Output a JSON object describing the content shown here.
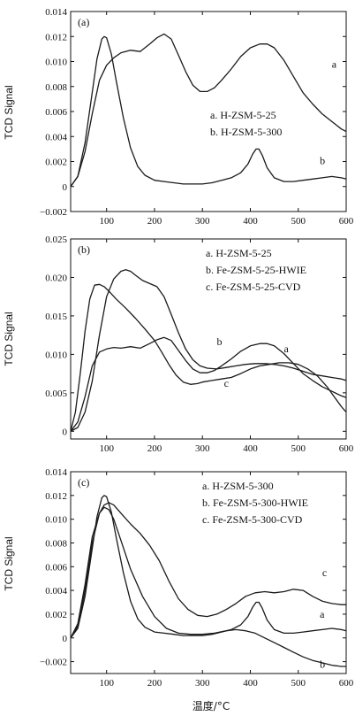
{
  "figure": {
    "xlabel": "温度/°C",
    "ylabel": "TCD Signal"
  },
  "chart_data": [
    {
      "type": "line",
      "panel_label": "(a)",
      "xlim": [
        25,
        600
      ],
      "ylim": [
        -0.002,
        0.014
      ],
      "xticks": [
        "100",
        "200",
        "300",
        "400",
        "500",
        "600"
      ],
      "yticks": [
        "0.014",
        "0.012",
        "0.010",
        "0.008",
        "0.006",
        "0.004",
        "0.002",
        "0",
        "-0.002"
      ],
      "ytick_values": [
        0.014,
        0.012,
        0.01,
        0.008,
        0.006,
        0.004,
        0.002,
        0,
        -0.002
      ],
      "legend": [
        "a. H-ZSM-5-25",
        "b. H-ZSM-5-300"
      ],
      "series": [
        {
          "name": "a",
          "label_pos": [
            570,
            0.0095
          ],
          "x": [
            25,
            40,
            55,
            70,
            85,
            100,
            115,
            130,
            150,
            170,
            190,
            205,
            220,
            235,
            250,
            265,
            280,
            295,
            310,
            325,
            340,
            360,
            380,
            400,
            420,
            435,
            450,
            470,
            490,
            510,
            530,
            550,
            570,
            590,
            600
          ],
          "y": [
            0.0,
            0.0008,
            0.0028,
            0.0058,
            0.0085,
            0.0097,
            0.0103,
            0.0107,
            0.0109,
            0.0108,
            0.0114,
            0.0119,
            0.0122,
            0.0118,
            0.0105,
            0.0092,
            0.0081,
            0.0076,
            0.0076,
            0.0079,
            0.0085,
            0.0094,
            0.0104,
            0.0111,
            0.0114,
            0.0114,
            0.0111,
            0.0101,
            0.0088,
            0.0075,
            0.0066,
            0.0058,
            0.0052,
            0.0046,
            0.0044
          ]
        },
        {
          "name": "b",
          "label_pos": [
            545,
            0.0018
          ],
          "x": [
            25,
            40,
            55,
            70,
            80,
            90,
            95,
            100,
            110,
            120,
            135,
            150,
            165,
            180,
            200,
            220,
            240,
            260,
            280,
            300,
            320,
            340,
            360,
            380,
            395,
            405,
            412,
            418,
            425,
            435,
            450,
            470,
            490,
            510,
            530,
            550,
            570,
            590,
            600
          ],
          "y": [
            0.0,
            0.0008,
            0.0035,
            0.0075,
            0.0102,
            0.0118,
            0.012,
            0.0119,
            0.0106,
            0.0085,
            0.0055,
            0.0031,
            0.0016,
            0.0009,
            0.0005,
            0.0004,
            0.0003,
            0.0002,
            0.0002,
            0.0002,
            0.0003,
            0.0005,
            0.0007,
            0.0011,
            0.0018,
            0.0026,
            0.003,
            0.003,
            0.0025,
            0.0015,
            0.0007,
            0.0004,
            0.0004,
            0.0005,
            0.0006,
            0.0007,
            0.0008,
            0.0007,
            0.0006
          ]
        }
      ]
    },
    {
      "type": "line",
      "panel_label": "(b)",
      "xlim": [
        25,
        600
      ],
      "ylim": [
        -0.001,
        0.025
      ],
      "xticks": [
        "100",
        "200",
        "300",
        "400",
        "500",
        "600"
      ],
      "yticks": [
        "0.025",
        "0.020",
        "0.015",
        "0.010",
        "0.005",
        "0"
      ],
      "ytick_values": [
        0.025,
        0.02,
        0.015,
        0.01,
        0.005,
        0
      ],
      "legend": [
        "a. H-ZSM-5-25",
        "b. Fe-ZSM-5-25-HWIE",
        "c. Fe-ZSM-5-25-CVD"
      ],
      "series": [
        {
          "name": "a",
          "label_pos": [
            470,
            0.0103
          ],
          "x": [
            25,
            40,
            55,
            70,
            85,
            100,
            115,
            130,
            150,
            170,
            190,
            205,
            220,
            235,
            250,
            265,
            280,
            295,
            310,
            325,
            340,
            360,
            380,
            400,
            420,
            435,
            450,
            470,
            490,
            510,
            530,
            550,
            570,
            590,
            600
          ],
          "y": [
            0.0,
            0.0012,
            0.0045,
            0.0085,
            0.0103,
            0.0107,
            0.0109,
            0.0108,
            0.011,
            0.0108,
            0.0114,
            0.0119,
            0.0122,
            0.0118,
            0.0105,
            0.0092,
            0.0081,
            0.0076,
            0.0076,
            0.0079,
            0.0085,
            0.0094,
            0.0104,
            0.0111,
            0.0114,
            0.0114,
            0.0111,
            0.0101,
            0.0088,
            0.0075,
            0.0066,
            0.0058,
            0.0052,
            0.0046,
            0.0044
          ]
        },
        {
          "name": "b",
          "label_pos": [
            330,
            0.0112
          ],
          "x": [
            25,
            40,
            55,
            70,
            85,
            100,
            115,
            130,
            140,
            150,
            160,
            175,
            190,
            205,
            220,
            235,
            250,
            265,
            280,
            295,
            310,
            330,
            350,
            370,
            390,
            410,
            430,
            450,
            470,
            490,
            510,
            530,
            550,
            570,
            590,
            600
          ],
          "y": [
            0.0,
            0.0005,
            0.0025,
            0.0065,
            0.0125,
            0.0175,
            0.0198,
            0.0208,
            0.021,
            0.0208,
            0.0203,
            0.0196,
            0.0192,
            0.0188,
            0.0175,
            0.0152,
            0.0128,
            0.0107,
            0.0093,
            0.0085,
            0.0082,
            0.0081,
            0.0083,
            0.0085,
            0.0087,
            0.0088,
            0.0088,
            0.0087,
            0.0085,
            0.0082,
            0.0078,
            0.0074,
            0.0072,
            0.007,
            0.0068,
            0.0066
          ]
        },
        {
          "name": "c",
          "label_pos": [
            345,
            0.0058
          ],
          "x": [
            25,
            35,
            45,
            55,
            65,
            75,
            85,
            95,
            105,
            120,
            140,
            160,
            180,
            200,
            215,
            230,
            245,
            260,
            275,
            290,
            300,
            320,
            340,
            360,
            380,
            400,
            420,
            440,
            460,
            480,
            500,
            520,
            540,
            560,
            575,
            590,
            600
          ],
          "y": [
            0.0,
            0.0025,
            0.0075,
            0.013,
            0.0172,
            0.019,
            0.0191,
            0.0188,
            0.0182,
            0.0172,
            0.016,
            0.0147,
            0.0133,
            0.0118,
            0.0103,
            0.0087,
            0.0073,
            0.0064,
            0.0061,
            0.0062,
            0.0064,
            0.0066,
            0.0068,
            0.007,
            0.0075,
            0.0081,
            0.0085,
            0.0087,
            0.0089,
            0.0089,
            0.0087,
            0.0081,
            0.0072,
            0.0058,
            0.0045,
            0.0032,
            0.0025
          ]
        }
      ]
    },
    {
      "type": "line",
      "panel_label": "(c)",
      "xlim": [
        25,
        600
      ],
      "ylim": [
        -0.003,
        0.014
      ],
      "xticks": [
        "100",
        "200",
        "300",
        "400",
        "500",
        "600"
      ],
      "yticks": [
        "0.014",
        "0.012",
        "0.010",
        "0.008",
        "0.006",
        "0.004",
        "0.002",
        "0",
        "-0.002"
      ],
      "ytick_values": [
        0.014,
        0.012,
        0.01,
        0.008,
        0.006,
        0.004,
        0.002,
        0,
        -0.002
      ],
      "legend": [
        "a. H-ZSM-5-300",
        "b. Fe-ZSM-5-300-HWIE",
        "c. Fe-ZSM-5-300-CVD"
      ],
      "series": [
        {
          "name": "a",
          "label_pos": [
            545,
            0.0017
          ],
          "x": [
            25,
            40,
            55,
            70,
            80,
            90,
            95,
            100,
            110,
            120,
            135,
            150,
            165,
            180,
            200,
            220,
            240,
            260,
            280,
            300,
            320,
            340,
            360,
            380,
            395,
            405,
            412,
            418,
            425,
            435,
            450,
            470,
            490,
            510,
            530,
            550,
            570,
            590,
            600
          ],
          "y": [
            0.0,
            0.0008,
            0.0035,
            0.0075,
            0.0102,
            0.0118,
            0.012,
            0.0119,
            0.0106,
            0.0085,
            0.0055,
            0.0031,
            0.0016,
            0.0009,
            0.0005,
            0.0004,
            0.0003,
            0.0002,
            0.0002,
            0.0002,
            0.0003,
            0.0005,
            0.0007,
            0.0011,
            0.0018,
            0.0026,
            0.003,
            0.003,
            0.0025,
            0.0015,
            0.0007,
            0.0004,
            0.0004,
            0.0005,
            0.0006,
            0.0007,
            0.0008,
            0.0007,
            0.0006
          ]
        },
        {
          "name": "b",
          "label_pos": [
            545,
            -0.0025
          ],
          "x": [
            25,
            40,
            55,
            70,
            85,
            95,
            105,
            115,
            130,
            150,
            175,
            200,
            225,
            250,
            275,
            300,
            325,
            350,
            370,
            390,
            410,
            430,
            450,
            470,
            490,
            510,
            530,
            550,
            570,
            590,
            600
          ],
          "y": [
            0.0,
            0.001,
            0.004,
            0.008,
            0.0105,
            0.011,
            0.0108,
            0.01,
            0.0082,
            0.0058,
            0.0035,
            0.0018,
            0.0008,
            0.0004,
            0.0003,
            0.0003,
            0.0004,
            0.0006,
            0.0007,
            0.0006,
            0.0004,
            0.0,
            -0.0004,
            -0.0008,
            -0.0012,
            -0.0016,
            -0.0019,
            -0.0021,
            -0.0023,
            -0.0024,
            -0.0024
          ]
        },
        {
          "name": "c",
          "label_pos": [
            550,
            0.0052
          ],
          "x": [
            25,
            40,
            55,
            70,
            85,
            95,
            105,
            115,
            130,
            150,
            170,
            190,
            210,
            230,
            250,
            270,
            290,
            310,
            330,
            350,
            370,
            390,
            410,
            430,
            450,
            470,
            490,
            510,
            530,
            550,
            570,
            590,
            600
          ],
          "y": [
            0.0,
            0.0012,
            0.0045,
            0.0085,
            0.0105,
            0.0112,
            0.0114,
            0.0112,
            0.0105,
            0.0096,
            0.0088,
            0.0078,
            0.0065,
            0.0048,
            0.0033,
            0.0024,
            0.0019,
            0.0018,
            0.002,
            0.0024,
            0.0029,
            0.0035,
            0.0038,
            0.0039,
            0.0038,
            0.0039,
            0.0041,
            0.004,
            0.0035,
            0.0031,
            0.0029,
            0.0028,
            0.0028
          ]
        }
      ]
    }
  ]
}
